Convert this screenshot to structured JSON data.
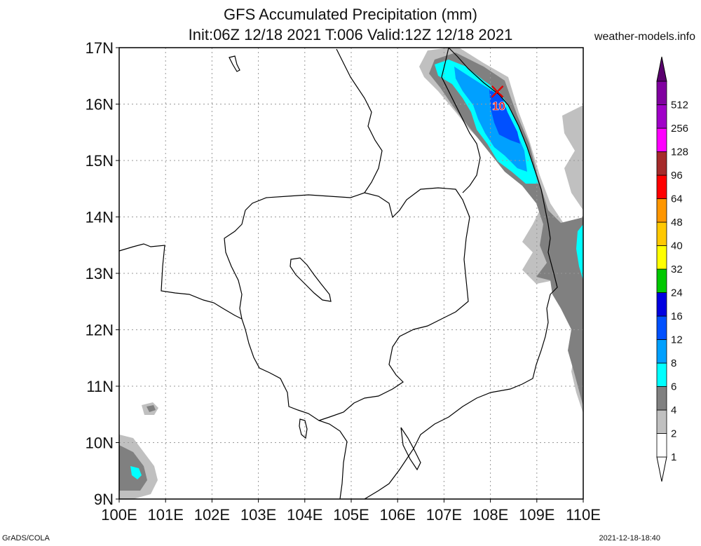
{
  "title_line1": "GFS Accumulated Precipitation (mm)",
  "title_line2": "Init:06Z 12/18 2021 T:006 Valid:12Z 12/18 2021",
  "site": "weather-models.info",
  "footer_left": "GrADS/COLA",
  "footer_right": "2021-12-18-18:40",
  "lat_labels": [
    "17N",
    "16N",
    "15N",
    "14N",
    "13N",
    "12N",
    "11N",
    "10N",
    "9N"
  ],
  "lon_labels": [
    "100E",
    "101E",
    "102E",
    "103E",
    "104E",
    "105E",
    "106E",
    "107E",
    "108E",
    "109E",
    "110E"
  ],
  "max_marker": {
    "label": "10",
    "lon": 108.15,
    "lat": 16.22
  },
  "legend": [
    {
      "label": "1",
      "color": "#ffffff"
    },
    {
      "label": "2",
      "color": "#c0c0c0"
    },
    {
      "label": "4",
      "color": "#808080"
    },
    {
      "label": "6",
      "color": "#00ffff"
    },
    {
      "label": "8",
      "color": "#00a0ff"
    },
    {
      "label": "12",
      "color": "#0050ff"
    },
    {
      "label": "16",
      "color": "#0000e0"
    },
    {
      "label": "24",
      "color": "#00c800"
    },
    {
      "label": "32",
      "color": "#ffff00"
    },
    {
      "label": "40",
      "color": "#ffc800"
    },
    {
      "label": "48",
      "color": "#ff9600"
    },
    {
      "label": "64",
      "color": "#ff0000"
    },
    {
      "label": "96",
      "color": "#a52a2a"
    },
    {
      "label": "128",
      "color": "#ff00ff"
    },
    {
      "label": "256",
      "color": "#a000c8"
    },
    {
      "label": "512",
      "color": "#8000a0"
    }
  ],
  "legend_top_color": "#5a006e"
}
